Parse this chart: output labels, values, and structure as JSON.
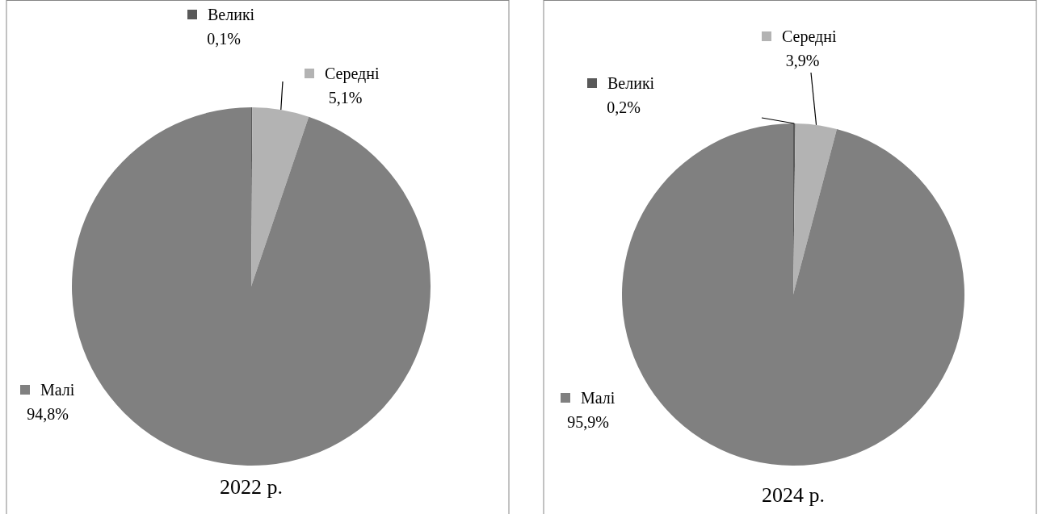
{
  "chart_data": [
    {
      "type": "pie",
      "title": "2022 р.",
      "categories": [
        "Великі",
        "Середні",
        "Малі"
      ],
      "values": [
        0.1,
        5.1,
        94.8
      ],
      "colors": [
        "#595959",
        "#b3b3b3",
        "#808080"
      ],
      "value_labels": [
        "0,1%",
        "5,1%",
        "94,8%"
      ],
      "legend": "top left"
    },
    {
      "type": "pie",
      "title": "2024 р.",
      "categories": [
        "Великі",
        "Середні",
        "Малі"
      ],
      "values": [
        0.2,
        3.9,
        95.9
      ],
      "colors": [
        "#595959",
        "#b3b3b3",
        "#808080"
      ],
      "value_labels": [
        "0,2%",
        "3,9%",
        "95,9%"
      ],
      "legend": "top left"
    }
  ]
}
